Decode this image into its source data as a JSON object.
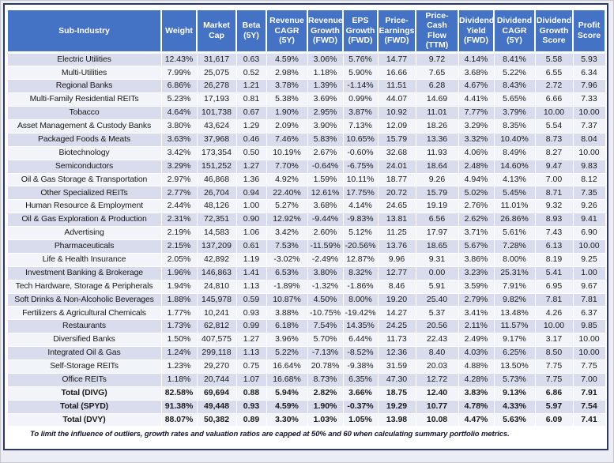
{
  "chart_data": {
    "type": "table",
    "columns": [
      "Sub-Industry",
      "Weight",
      "Market Cap",
      "Beta (5Y)",
      "Revenue CAGR (5Y)",
      "Revenue Growth (FWD)",
      "EPS Growth (FWD)",
      "Price-Earnings (FWD)",
      "Price-Cash Flow (TTM)",
      "Dividend Yield (FWD)",
      "Dividend CAGR (5Y)",
      "Dividend Growth Score",
      "Profit Score"
    ],
    "rows": [
      {
        "name": "Electric Utilities",
        "values": [
          "12.43%",
          "31,617",
          "0.63",
          "4.59%",
          "3.06%",
          "5.76%",
          "14.77",
          "9.72",
          "4.14%",
          "8.41%",
          "5.58",
          "5.93"
        ]
      },
      {
        "name": "Multi-Utilities",
        "values": [
          "7.99%",
          "25,075",
          "0.52",
          "2.98%",
          "1.18%",
          "5.90%",
          "16.66",
          "7.65",
          "3.68%",
          "5.22%",
          "6.55",
          "6.34"
        ]
      },
      {
        "name": "Regional Banks",
        "values": [
          "6.86%",
          "26,278",
          "1.21",
          "3.78%",
          "1.39%",
          "-1.14%",
          "11.51",
          "6.28",
          "4.67%",
          "8.43%",
          "2.72",
          "7.96"
        ]
      },
      {
        "name": "Multi-Family Residential REITs",
        "values": [
          "5.23%",
          "17,193",
          "0.81",
          "5.38%",
          "3.69%",
          "0.99%",
          "44.07",
          "14.69",
          "4.41%",
          "5.65%",
          "6.66",
          "7.33"
        ]
      },
      {
        "name": "Tobacco",
        "values": [
          "4.64%",
          "101,738",
          "0.67",
          "1.90%",
          "2.95%",
          "3.87%",
          "10.92",
          "11.01",
          "7.77%",
          "3.79%",
          "10.00",
          "10.00"
        ]
      },
      {
        "name": "Asset Management & Custody Banks",
        "values": [
          "3.80%",
          "43,624",
          "1.29",
          "2.09%",
          "3.90%",
          "7.13%",
          "12.09",
          "18.26",
          "3.29%",
          "8.35%",
          "5.54",
          "7.37"
        ]
      },
      {
        "name": "Packaged Foods & Meats",
        "values": [
          "3.63%",
          "37,968",
          "0.46",
          "7.46%",
          "5.83%",
          "10.65%",
          "15.79",
          "13.36",
          "3.32%",
          "10.40%",
          "8.73",
          "8.04"
        ]
      },
      {
        "name": "Biotechnology",
        "values": [
          "3.42%",
          "173,354",
          "0.50",
          "10.19%",
          "2.67%",
          "-0.60%",
          "32.68",
          "11.93",
          "4.06%",
          "8.49%",
          "8.27",
          "10.00"
        ]
      },
      {
        "name": "Semiconductors",
        "values": [
          "3.29%",
          "151,252",
          "1.27",
          "7.70%",
          "-0.64%",
          "-6.75%",
          "24.01",
          "18.64",
          "2.48%",
          "14.60%",
          "9.47",
          "9.83"
        ]
      },
      {
        "name": "Oil & Gas Storage & Transportation",
        "values": [
          "2.97%",
          "46,868",
          "1.36",
          "4.92%",
          "1.59%",
          "10.11%",
          "18.77",
          "9.26",
          "4.94%",
          "4.13%",
          "7.00",
          "8.12"
        ]
      },
      {
        "name": "Other Specialized REITs",
        "values": [
          "2.77%",
          "26,704",
          "0.94",
          "22.40%",
          "12.61%",
          "17.75%",
          "20.72",
          "15.79",
          "5.02%",
          "5.45%",
          "8.71",
          "7.35"
        ]
      },
      {
        "name": "Human Resource & Employment",
        "values": [
          "2.44%",
          "48,126",
          "1.00",
          "5.27%",
          "3.68%",
          "4.14%",
          "24.65",
          "19.19",
          "2.76%",
          "11.01%",
          "9.32",
          "9.26"
        ]
      },
      {
        "name": "Oil & Gas Exploration & Production",
        "values": [
          "2.31%",
          "72,351",
          "0.90",
          "12.92%",
          "-9.44%",
          "-9.83%",
          "13.81",
          "6.56",
          "2.62%",
          "26.86%",
          "8.93",
          "9.41"
        ]
      },
      {
        "name": "Advertising",
        "values": [
          "2.19%",
          "14,583",
          "1.06",
          "3.42%",
          "2.60%",
          "5.12%",
          "11.25",
          "17.97",
          "3.71%",
          "5.61%",
          "7.43",
          "6.90"
        ]
      },
      {
        "name": "Pharmaceuticals",
        "values": [
          "2.15%",
          "137,209",
          "0.61",
          "7.53%",
          "-11.59%",
          "-20.56%",
          "13.76",
          "18.65",
          "5.67%",
          "7.28%",
          "6.13",
          "10.00"
        ]
      },
      {
        "name": "Life & Health Insurance",
        "values": [
          "2.05%",
          "42,892",
          "1.19",
          "-3.02%",
          "-2.49%",
          "12.87%",
          "9.96",
          "9.31",
          "3.86%",
          "8.00%",
          "8.19",
          "9.25"
        ]
      },
      {
        "name": "Investment Banking & Brokerage",
        "values": [
          "1.96%",
          "146,863",
          "1.41",
          "6.53%",
          "3.80%",
          "8.32%",
          "12.77",
          "0.00",
          "3.23%",
          "25.31%",
          "5.41",
          "1.00"
        ]
      },
      {
        "name": "Tech Hardware, Storage & Peripherals",
        "values": [
          "1.94%",
          "24,810",
          "1.13",
          "-1.89%",
          "-1.32%",
          "-1.86%",
          "8.46",
          "5.91",
          "3.59%",
          "7.91%",
          "6.95",
          "9.67"
        ]
      },
      {
        "name": "Soft Drinks & Non-Alcoholic Beverages",
        "values": [
          "1.88%",
          "145,978",
          "0.59",
          "10.87%",
          "4.50%",
          "8.00%",
          "19.20",
          "25.40",
          "2.79%",
          "9.82%",
          "7.81",
          "7.81"
        ]
      },
      {
        "name": "Fertilizers & Agricultural Chemicals",
        "values": [
          "1.77%",
          "10,241",
          "0.93",
          "3.88%",
          "-10.75%",
          "-19.42%",
          "14.27",
          "5.37",
          "3.41%",
          "13.48%",
          "4.26",
          "6.37"
        ]
      },
      {
        "name": "Restaurants",
        "values": [
          "1.73%",
          "62,812",
          "0.99",
          "6.18%",
          "7.54%",
          "14.35%",
          "24.25",
          "20.56",
          "2.11%",
          "11.57%",
          "10.00",
          "9.85"
        ]
      },
      {
        "name": "Diversified Banks",
        "values": [
          "1.50%",
          "407,575",
          "1.27",
          "3.96%",
          "5.70%",
          "6.44%",
          "11.73",
          "22.43",
          "2.49%",
          "9.17%",
          "3.17",
          "10.00"
        ]
      },
      {
        "name": "Integrated Oil & Gas",
        "values": [
          "1.24%",
          "299,118",
          "1.13",
          "5.22%",
          "-7.13%",
          "-8.52%",
          "12.36",
          "8.40",
          "4.03%",
          "6.25%",
          "8.50",
          "10.00"
        ]
      },
      {
        "name": "Self-Storage REITs",
        "values": [
          "1.23%",
          "29,270",
          "0.75",
          "16.64%",
          "20.78%",
          "-9.38%",
          "31.59",
          "20.03",
          "4.88%",
          "13.50%",
          "7.75",
          "7.75"
        ]
      },
      {
        "name": "Office REITs",
        "values": [
          "1.18%",
          "20,744",
          "1.07",
          "16.68%",
          "8.73%",
          "6.35%",
          "47.30",
          "12.72",
          "4.28%",
          "5.73%",
          "7.75",
          "7.00"
        ]
      }
    ],
    "totals": [
      {
        "name": "Total (DIVG)",
        "values": [
          "82.58%",
          "69,694",
          "0.88",
          "5.94%",
          "2.82%",
          "3.66%",
          "18.75",
          "12.40",
          "3.83%",
          "9.13%",
          "6.86",
          "7.91"
        ]
      },
      {
        "name": "Total (SPYD)",
        "values": [
          "91.38%",
          "49,448",
          "0.93",
          "4.59%",
          "1.90%",
          "-0.37%",
          "19.29",
          "10.77",
          "4.78%",
          "4.33%",
          "5.97",
          "7.54"
        ]
      },
      {
        "name": "Total (DVY)",
        "values": [
          "88.07%",
          "50,382",
          "0.89",
          "3.30%",
          "1.03%",
          "1.05%",
          "13.98",
          "10.08",
          "4.47%",
          "5.63%",
          "6.09",
          "7.41"
        ]
      }
    ],
    "footnote": "To limit the influence of outliers, growth rates and valuation ratios are capped at 50% and 60 when calculating summary portfolio metrics.",
    "layout": {
      "banding": "odd-rows-shaded",
      "header_lines_max": 3,
      "grid": "white-separators"
    }
  },
  "colors": {
    "header_bg": "#4472C4",
    "header_text": "#FFFFFF",
    "band": "#D8DCEC",
    "band_alt": "#F3F4FA",
    "frame_border": "#2E3A5C",
    "page_bg": "#ECEDF4",
    "text": "#1A1A1A"
  }
}
